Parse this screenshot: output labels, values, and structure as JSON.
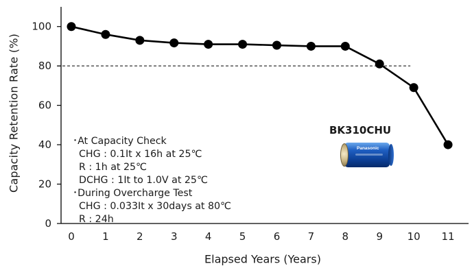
{
  "chart_data": {
    "type": "line",
    "xlabel": "Elapsed Years (Years)",
    "ylabel": "Capacity Retention Rate (%)",
    "x": [
      0,
      1,
      2,
      3,
      4,
      5,
      6,
      7,
      8,
      9,
      10,
      11
    ],
    "series": [
      {
        "values": [
          100,
          96,
          93,
          91.7,
          91,
          91,
          90.5,
          90,
          90,
          81,
          69,
          40
        ]
      }
    ],
    "xlim": [
      -0.3,
      11.6
    ],
    "ylim": [
      0,
      110
    ],
    "xticks": [
      "0",
      "1",
      "2",
      "3",
      "4",
      "5",
      "6",
      "7",
      "8",
      "9",
      "10",
      "11"
    ],
    "yticks": [
      "0",
      "20",
      "40",
      "60",
      "80",
      "100"
    ],
    "reference_line": {
      "y": 80,
      "x_from": -0.4,
      "x_to": 9.9,
      "style": "dashed"
    },
    "grid": false,
    "line_color": "#000000"
  },
  "notes": [
    "･At Capacity Check",
    "  CHG : 0.1It x 16h at 25℃",
    "  R : 1h at 25℃",
    "  DCHG : 1It to 1.0V at 25℃",
    "･During Overcharge Test",
    "  CHG : 0.033It x 30days at 80℃",
    "  R : 24h"
  ],
  "product": {
    "label": "BK310CHU",
    "brand": "Panasonic"
  }
}
